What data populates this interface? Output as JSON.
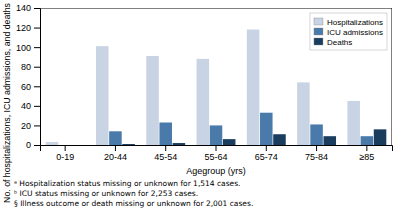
{
  "chart_data": {
    "type": "bar",
    "categories": [
      "0-19",
      "20-44",
      "45-54",
      "55-64",
      "65-74",
      "75-84",
      "≥85"
    ],
    "series": [
      {
        "name": "Hospitalizations",
        "color": "#c8d4e3",
        "values": [
          3,
          101,
          91,
          88,
          118,
          64,
          45
        ]
      },
      {
        "name": "ICU admissions",
        "color": "#4a7aaa",
        "values": [
          0,
          14,
          23,
          20,
          33,
          21,
          9
        ]
      },
      {
        "name": "Deaths",
        "color": "#1a3d5e",
        "values": [
          0,
          1,
          2,
          6,
          11,
          9,
          16
        ]
      }
    ],
    "xlabel": "Agegroup (yrs)",
    "ylabel": "No. of hospitalizations, ICU admissions, and deaths",
    "ylim": [
      0,
      140
    ],
    "yticks": [
      0,
      20,
      40,
      60,
      80,
      100,
      120,
      140
    ],
    "grid": false,
    "legend": "upper right",
    "annotations": [
      "ᵃ Hospitalization status missing or unknown for 1,514 cases.",
      "ᵇ ICU status missing or unknown for 2,253 cases.",
      "§ Illness outcome or death missing or unknown for 2,001 cases."
    ]
  }
}
